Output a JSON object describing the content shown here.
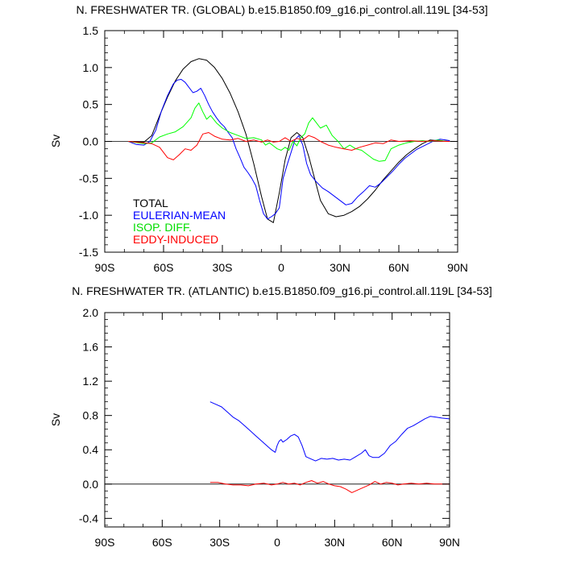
{
  "chart_data": [
    {
      "type": "line",
      "title": "N. FRESHWATER TR. (GLOBAL) b.e15.B1850.f09_g16.pi_control.all.119L [34-53]",
      "xlabel": "",
      "ylabel": "Sv",
      "xlim": [
        -90,
        90
      ],
      "ylim": [
        -1.5,
        1.5
      ],
      "grid": false,
      "x_ticks": [
        -90,
        -60,
        -30,
        0,
        30,
        60,
        90
      ],
      "x_tick_labels": [
        "90S",
        "60S",
        "30S",
        "0",
        "30N",
        "60N",
        "90N"
      ],
      "y_ticks": [
        -1.5,
        -1.0,
        -0.5,
        0.0,
        0.5,
        1.0,
        1.5
      ],
      "y_tick_labels": [
        "-1.5",
        "-1.0",
        "-0.5",
        "0.0",
        "0.5",
        "1.0",
        "1.5"
      ],
      "legend_placement": "bottom-left",
      "legend": [
        "TOTAL",
        "EULERIAN-MEAN",
        "ISOP. DIFF.",
        "EDDY-INDUCED"
      ],
      "series": [
        {
          "name": "TOTAL",
          "color": "#000000",
          "x": [
            -78,
            -70,
            -66,
            -62,
            -58,
            -54,
            -50,
            -46,
            -42,
            -38,
            -34,
            -30,
            -26,
            -22,
            -18,
            -14,
            -10,
            -7,
            -4,
            -1,
            2,
            5,
            8,
            11,
            14,
            17,
            20,
            24,
            28,
            32,
            36,
            40,
            44,
            48,
            52,
            56,
            60,
            64,
            68,
            72,
            76,
            80,
            86
          ],
          "y": [
            0.0,
            -0.01,
            0.08,
            0.35,
            0.6,
            0.82,
            0.98,
            1.08,
            1.12,
            1.1,
            1.0,
            0.85,
            0.65,
            0.4,
            0.1,
            -0.3,
            -0.75,
            -1.05,
            -1.1,
            -0.7,
            -0.25,
            0.05,
            0.12,
            0.05,
            -0.2,
            -0.5,
            -0.8,
            -0.98,
            -1.02,
            -1.0,
            -0.95,
            -0.88,
            -0.78,
            -0.66,
            -0.52,
            -0.4,
            -0.28,
            -0.18,
            -0.1,
            -0.03,
            0.02,
            0.01,
            0.0
          ]
        },
        {
          "name": "EULERIAN-MEAN",
          "color": "#0000ff",
          "x": [
            -78,
            -74,
            -70,
            -67,
            -64,
            -61,
            -58,
            -55,
            -53,
            -51,
            -49,
            -47,
            -45,
            -43,
            -41,
            -39,
            -37,
            -35,
            -33,
            -31,
            -29,
            -27,
            -25,
            -23,
            -21,
            -19,
            -17,
            -15,
            -13,
            -11,
            -9,
            -7,
            -5,
            -3,
            -1,
            1,
            3,
            5,
            7,
            9,
            11,
            13,
            15,
            18,
            21,
            24,
            27,
            30,
            33,
            36,
            39,
            42,
            45,
            48,
            51,
            54,
            57,
            60,
            63,
            66,
            69,
            72,
            75,
            78,
            81,
            84,
            86
          ],
          "y": [
            0.0,
            -0.04,
            -0.05,
            0.0,
            0.15,
            0.42,
            0.62,
            0.78,
            0.83,
            0.84,
            0.8,
            0.73,
            0.66,
            0.68,
            0.72,
            0.62,
            0.5,
            0.4,
            0.32,
            0.25,
            0.2,
            0.12,
            0.05,
            -0.1,
            -0.22,
            -0.35,
            -0.42,
            -0.5,
            -0.6,
            -0.8,
            -0.98,
            -1.05,
            -1.02,
            -0.98,
            -0.9,
            -0.5,
            -0.32,
            -0.15,
            0.02,
            0.08,
            -0.05,
            -0.3,
            -0.45,
            -0.55,
            -0.63,
            -0.68,
            -0.74,
            -0.8,
            -0.86,
            -0.84,
            -0.75,
            -0.68,
            -0.6,
            -0.62,
            -0.56,
            -0.48,
            -0.4,
            -0.31,
            -0.23,
            -0.17,
            -0.11,
            -0.07,
            -0.03,
            0.01,
            0.03,
            0.02,
            0.01
          ]
        },
        {
          "name": "ISOP. DIFF.",
          "color": "#00ff00",
          "x": [
            -78,
            -70,
            -66,
            -62,
            -58,
            -54,
            -50,
            -46,
            -44,
            -42,
            -40,
            -38,
            -36,
            -33,
            -30,
            -26,
            -22,
            -18,
            -14,
            -10,
            -8,
            -6,
            -4,
            -2,
            0,
            2,
            4,
            6,
            8,
            10,
            12,
            14,
            16,
            18,
            20,
            23,
            26,
            29,
            32,
            35,
            38,
            41,
            44,
            47,
            50,
            53,
            56,
            60,
            64,
            68,
            72,
            76,
            80,
            84,
            86
          ],
          "y": [
            0.0,
            -0.03,
            -0.02,
            0.06,
            0.1,
            0.13,
            0.2,
            0.32,
            0.45,
            0.52,
            0.4,
            0.3,
            0.35,
            0.25,
            0.18,
            0.12,
            0.08,
            0.04,
            0.05,
            0.02,
            -0.05,
            -0.02,
            -0.06,
            -0.1,
            -0.12,
            -0.08,
            -0.12,
            0.0,
            -0.06,
            0.05,
            0.1,
            0.25,
            0.32,
            0.25,
            0.18,
            0.22,
            0.08,
            0.0,
            -0.1,
            -0.05,
            -0.1,
            -0.12,
            -0.18,
            -0.24,
            -0.27,
            -0.26,
            -0.1,
            -0.05,
            -0.02,
            0.0,
            0.01,
            0.0,
            0.02,
            0.0,
            0.0
          ]
        },
        {
          "name": "EDDY-INDUCED",
          "color": "#ff0000",
          "x": [
            -78,
            -70,
            -66,
            -62,
            -58,
            -55,
            -52,
            -49,
            -46,
            -43,
            -40,
            -37,
            -34,
            -30,
            -26,
            -22,
            -18,
            -14,
            -10,
            -7,
            -4,
            -1,
            2,
            5,
            8,
            11,
            14,
            17,
            20,
            24,
            28,
            32,
            36,
            40,
            44,
            48,
            52,
            56,
            60,
            66,
            72,
            78,
            84,
            86
          ],
          "y": [
            0.0,
            -0.02,
            -0.03,
            -0.08,
            -0.22,
            -0.25,
            -0.18,
            -0.1,
            -0.12,
            -0.05,
            0.1,
            0.12,
            0.07,
            0.03,
            0.02,
            0.04,
            0.0,
            0.02,
            -0.01,
            0.02,
            -0.01,
            0.0,
            0.05,
            0.0,
            0.04,
            0.02,
            0.08,
            0.05,
            0.0,
            -0.05,
            -0.08,
            -0.1,
            -0.12,
            -0.08,
            -0.05,
            -0.02,
            -0.03,
            0.02,
            0.0,
            0.01,
            0.0,
            0.01,
            0.0,
            0.0
          ]
        }
      ]
    },
    {
      "type": "line",
      "title": "N. FRESHWATER TR. (ATLANTIC) b.e15.B1850.f09_g16.pi_control.all.119L [34-53]",
      "xlabel": "",
      "ylabel": "Sv",
      "xlim": [
        -90,
        90
      ],
      "ylim": [
        -0.5,
        2.0
      ],
      "grid": false,
      "x_ticks": [
        -90,
        -60,
        -30,
        0,
        30,
        60,
        90
      ],
      "x_tick_labels": [
        "90S",
        "60S",
        "30S",
        "0",
        "30N",
        "60N",
        "90N"
      ],
      "y_ticks": [
        -0.4,
        0.0,
        0.4,
        0.8,
        1.2,
        1.6,
        2.0
      ],
      "y_tick_labels": [
        "-0.4",
        "0.0",
        "0.4",
        "0.8",
        "1.2",
        "1.6",
        "2.0"
      ],
      "series": [
        {
          "name": "EULERIAN-MEAN",
          "color": "#0000ff",
          "x": [
            -35,
            -32,
            -29,
            -26,
            -23,
            -20,
            -17,
            -14,
            -11,
            -8,
            -5,
            -3,
            -1,
            0,
            1,
            2,
            3,
            5,
            7,
            9,
            11,
            13,
            15,
            17,
            20,
            23,
            26,
            29,
            32,
            35,
            38,
            41,
            44,
            46,
            48,
            50,
            53,
            56,
            59,
            62,
            65,
            68,
            71,
            74,
            77,
            80,
            83,
            86,
            90
          ],
          "y": [
            0.96,
            0.93,
            0.9,
            0.84,
            0.78,
            0.74,
            0.68,
            0.62,
            0.56,
            0.5,
            0.44,
            0.4,
            0.37,
            0.45,
            0.5,
            0.52,
            0.49,
            0.52,
            0.56,
            0.58,
            0.55,
            0.45,
            0.32,
            0.3,
            0.27,
            0.3,
            0.29,
            0.3,
            0.28,
            0.29,
            0.28,
            0.32,
            0.36,
            0.4,
            0.33,
            0.31,
            0.31,
            0.36,
            0.45,
            0.5,
            0.58,
            0.65,
            0.68,
            0.72,
            0.76,
            0.79,
            0.78,
            0.77,
            0.76
          ]
        },
        {
          "name": "EDDY-INDUCED",
          "color": "#ff0000",
          "x": [
            -35,
            -31,
            -27,
            -23,
            -19,
            -15,
            -11,
            -7,
            -3,
            0,
            3,
            6,
            9,
            12,
            15,
            18,
            21,
            24,
            27,
            30,
            33,
            36,
            39,
            42,
            45,
            48,
            51,
            54,
            57,
            60,
            63,
            66,
            70,
            74,
            78,
            82,
            86,
            90
          ],
          "y": [
            0.02,
            0.02,
            0.0,
            -0.01,
            -0.01,
            -0.02,
            0.0,
            0.01,
            -0.01,
            0.0,
            0.02,
            0.0,
            0.01,
            -0.01,
            0.02,
            0.04,
            0.01,
            0.03,
            0.0,
            -0.02,
            -0.03,
            -0.06,
            -0.1,
            -0.07,
            -0.04,
            -0.01,
            0.03,
            0.0,
            0.02,
            0.01,
            -0.01,
            0.0,
            0.01,
            0.0,
            0.01,
            0.0,
            0.0,
            0.0
          ]
        }
      ]
    }
  ]
}
